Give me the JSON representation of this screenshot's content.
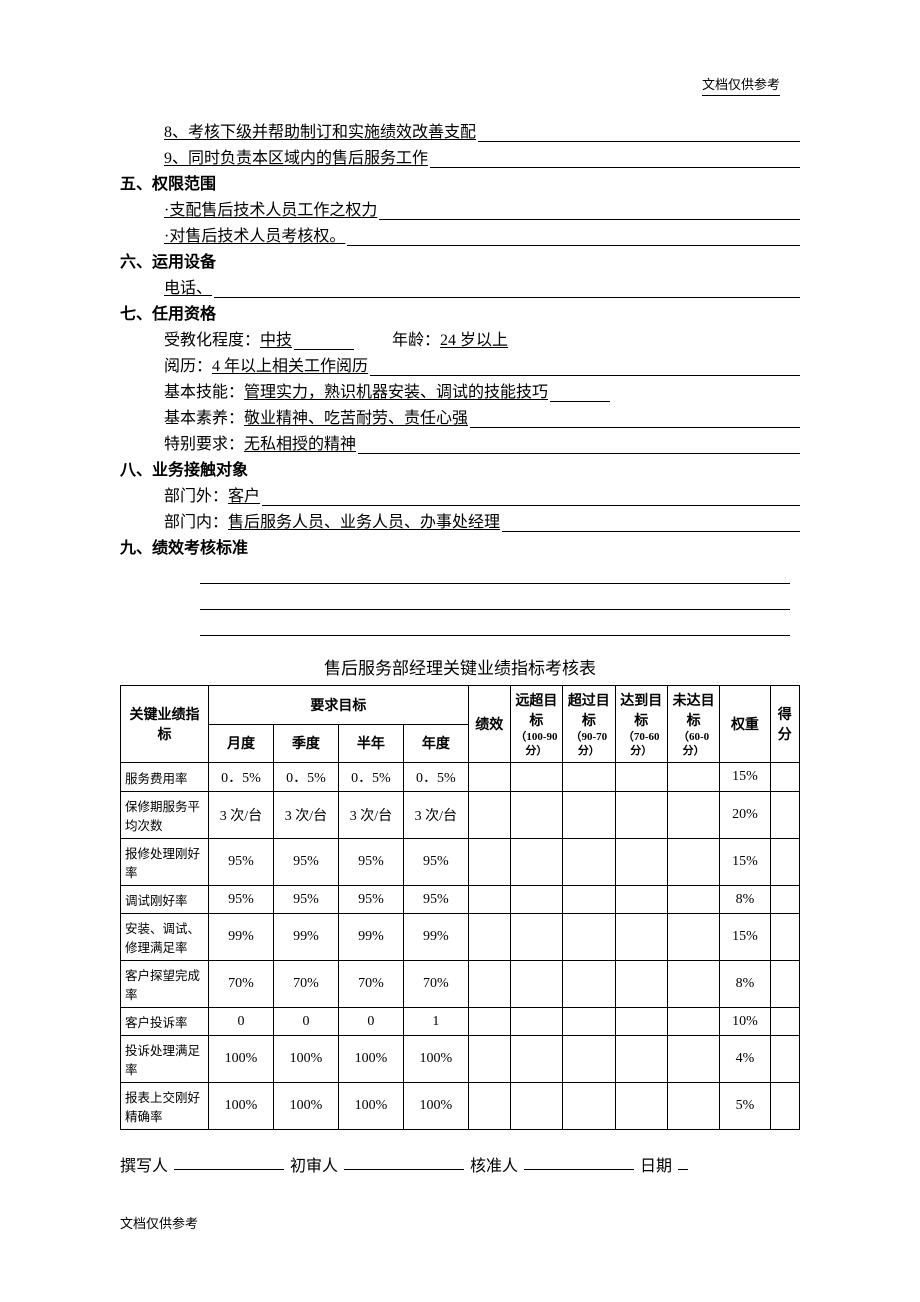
{
  "header_note": "文档仅供参考",
  "footer_note": "文档仅供参考",
  "items": {
    "i8": "8、考核下级并帮助制订和实施绩效改善支配",
    "i9": "9、同时负责本区域内的售后服务工作"
  },
  "sec5": {
    "head": "五、权限范围",
    "l1": "·支配售后技术人员工作之权力",
    "l2": "·对售后技术人员考核权。"
  },
  "sec6": {
    "head": "六、运用设备",
    "l1": "电话、"
  },
  "sec7": {
    "head": "七、任用资格",
    "edu_label": "受教化程度：",
    "edu_val": "中技",
    "age_label": "年龄：",
    "age_val": "24 岁以上",
    "exp_label": "阅历：",
    "exp_val": "4 年以上相关工作阅历",
    "skill_label": "基本技能：",
    "skill_val": "管理实力，熟识机器安装、调试的技能技巧",
    "qual_label": "基本素养：",
    "qual_val": "敬业精神、吃苦耐劳、责任心强",
    "spec_label": "特别要求：",
    "spec_val": "无私相授的精神"
  },
  "sec8": {
    "head": "八、业务接触对象",
    "ext_label": "部门外：",
    "ext_val": " 客户",
    "int_label": "部门内：",
    "int_val": " 售后服务人员、业务人员、办事处经理"
  },
  "sec9": {
    "head": "九、绩效考核标准"
  },
  "table_title": "售后服务部经理关键业绩指标考核表",
  "table": {
    "headers": {
      "kpi": "关键业绩指标",
      "target": "要求目标",
      "month": "月度",
      "quarter": "季度",
      "half": "半年",
      "year": "年度",
      "perf": "绩效",
      "far": "远超目标",
      "far_sub": "（100-90 分）",
      "exceed": "超过目标",
      "exceed_sub": "（90-70 分）",
      "meet": "达到目标",
      "meet_sub": "（70-60 分）",
      "miss": "未达目标",
      "miss_sub": "（60-0 分）",
      "weight": "权重",
      "score": "得分"
    },
    "rows": [
      {
        "name": "服务费用率",
        "m": "0．5%",
        "q": "0．5%",
        "h": "0．5%",
        "y": "0．5%",
        "w": "15%"
      },
      {
        "name": "保修期服务平均次数",
        "m": "3 次/台",
        "q": "3 次/台",
        "h": "3 次/台",
        "y": "3 次/台",
        "w": "20%"
      },
      {
        "name": "报修处理刚好率",
        "m": "95%",
        "q": "95%",
        "h": "95%",
        "y": "95%",
        "w": "15%"
      },
      {
        "name": "调试刚好率",
        "m": "95%",
        "q": "95%",
        "h": "95%",
        "y": "95%",
        "w": "8%"
      },
      {
        "name": "安装、调试、修理满足率",
        "m": "99%",
        "q": "99%",
        "h": "99%",
        "y": "99%",
        "w": "15%"
      },
      {
        "name": "客户探望完成率",
        "m": "70%",
        "q": "70%",
        "h": "70%",
        "y": "70%",
        "w": "8%"
      },
      {
        "name": "客户投诉率",
        "m": "0",
        "q": "0",
        "h": "0",
        "y": "1",
        "w": "10%"
      },
      {
        "name": "投诉处理满足率",
        "m": "100%",
        "q": "100%",
        "h": "100%",
        "y": "100%",
        "w": "4%"
      },
      {
        "name": "报表上交刚好精确率",
        "m": "100%",
        "q": "100%",
        "h": "100%",
        "y": "100%",
        "w": "5%"
      }
    ]
  },
  "sign": {
    "writer": "撰写人",
    "first": "初审人",
    "approve": "核准人",
    "date": "日期"
  },
  "colors": {
    "text": "#000000",
    "bg": "#ffffff",
    "border": "#000000"
  },
  "col_widths": {
    "kpi": "84px",
    "period": "62px",
    "perf": "40px",
    "score_col": "50px",
    "weight": "48px",
    "final": "28px"
  }
}
